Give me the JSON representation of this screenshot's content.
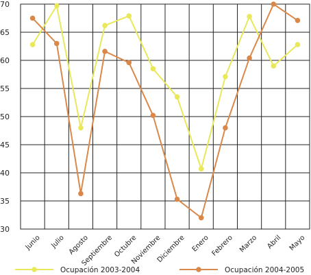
{
  "chart_data": {
    "type": "line",
    "categories": [
      "Junio",
      "Julio",
      "Agosto",
      "Septiembre",
      "Octubre",
      "Noviembre",
      "Diciembre",
      "Enero",
      "Febrero",
      "Marzo",
      "Abril",
      "Mayo"
    ],
    "series": [
      {
        "name": "Ocupación 2003-2004",
        "color": "#e8e85a",
        "values": [
          62.8,
          69.7,
          48.0,
          66.2,
          67.9,
          58.5,
          53.5,
          40.7,
          57.1,
          67.8,
          59.0,
          62.8
        ]
      },
      {
        "name": "Ocupación 2004-2005",
        "color": "#d9884a",
        "values": [
          67.5,
          63.0,
          36.3,
          61.6,
          59.6,
          50.2,
          35.3,
          32.0,
          48.0,
          60.4,
          70.0,
          67.1
        ]
      }
    ],
    "y_ticks": [
      "30",
      "35",
      "40",
      "45",
      "50",
      "55",
      "60",
      "65",
      "70"
    ],
    "ylim": [
      30,
      70
    ],
    "grid": true,
    "legend_position": "bottom"
  }
}
